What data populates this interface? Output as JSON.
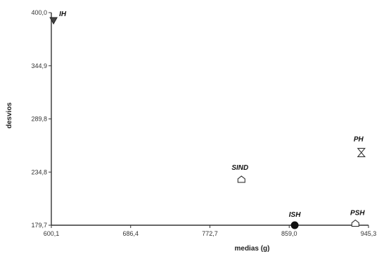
{
  "chart_data": {
    "type": "scatter",
    "title": "",
    "xlabel": "medias (g)",
    "ylabel": "desvios",
    "xlim": [
      600.1,
      945.3
    ],
    "ylim": [
      179.7,
      400.0
    ],
    "x_ticks": [
      "600,1",
      "686,4",
      "772,7",
      "859,0",
      "945,3"
    ],
    "y_ticks": [
      "179,7",
      "234,8",
      "289,8",
      "344,9",
      "400,0"
    ],
    "grid": false,
    "points": [
      {
        "label": "IH",
        "x": 602.5,
        "y": 392.0,
        "marker": "triangle-down-filled"
      },
      {
        "label": "SIND",
        "x": 807.0,
        "y": 227.0,
        "marker": "house-open"
      },
      {
        "label": "ISH",
        "x": 865.0,
        "y": 179.7,
        "marker": "circle-filled"
      },
      {
        "label": "PH",
        "x": 937.5,
        "y": 255.0,
        "marker": "hourglass-open"
      },
      {
        "label": "PSH",
        "x": 931.0,
        "y": 181.5,
        "marker": "house-open"
      }
    ]
  }
}
